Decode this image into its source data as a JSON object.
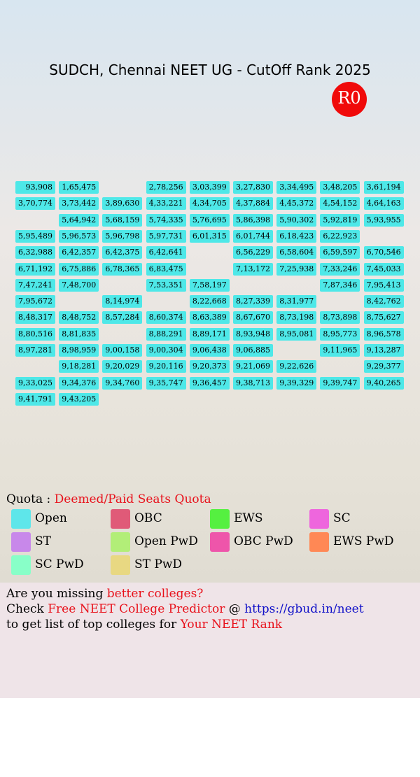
{
  "header": {
    "title": "SUDCH, Chennai NEET UG - CutOff Rank 2025",
    "round": "R0"
  },
  "grid": {
    "color": "#4ee8e8",
    "rows": [
      [
        "93,908",
        "1,65,475",
        null,
        "2,78,256",
        "3,03,399",
        "3,27,830",
        "3,34,495",
        "3,48,205",
        "3,61,194"
      ],
      [
        "3,70,774",
        "3,73,442",
        "3,89,630",
        "4,33,221",
        "4,34,705",
        "4,37,884",
        "4,45,372",
        "4,54,152",
        "4,64,163"
      ],
      [
        null,
        "5,64,942",
        "5,68,159",
        "5,74,335",
        "5,76,695",
        "5,86,398",
        "5,90,302",
        "5,92,819",
        "5,93,955"
      ],
      [
        "5,95,489",
        "5,96,573",
        "5,96,798",
        "5,97,731",
        "6,01,315",
        "6,01,744",
        "6,18,423",
        "6,22,923",
        null
      ],
      [
        "6,32,988",
        "6,42,357",
        "6,42,375",
        "6,42,641",
        null,
        "6,56,229",
        "6,58,604",
        "6,59,597",
        "6,70,546"
      ],
      [
        "6,71,192",
        "6,75,886",
        "6,78,365",
        "6,83,475",
        null,
        "7,13,172",
        "7,25,938",
        "7,33,246",
        "7,45,033"
      ],
      [
        "7,47,241",
        "7,48,700",
        null,
        "7,53,351",
        "7,58,197",
        null,
        null,
        "7,87,346",
        "7,95,413"
      ],
      [
        "7,95,672",
        null,
        "8,14,974",
        null,
        "8,22,668",
        "8,27,339",
        "8,31,977",
        null,
        "8,42,762"
      ],
      [
        "8,48,317",
        "8,48,752",
        "8,57,284",
        "8,60,374",
        "8,63,389",
        "8,67,670",
        "8,73,198",
        "8,73,898",
        "8,75,627"
      ],
      [
        "8,80,516",
        "8,81,835",
        null,
        "8,88,291",
        "8,89,171",
        "8,93,948",
        "8,95,081",
        "8,95,773",
        "8,96,578"
      ],
      [
        "8,97,281",
        "8,98,959",
        "9,00,158",
        "9,00,304",
        "9,06,438",
        "9,06,885",
        null,
        "9,11,965",
        "9,13,287"
      ],
      [
        null,
        "9,18,281",
        "9,20,029",
        "9,20,116",
        "9,20,373",
        "9,21,069",
        "9,22,626",
        null,
        "9,29,377"
      ],
      [
        "9,33,025",
        "9,34,376",
        "9,34,760",
        "9,35,747",
        "9,36,457",
        "9,38,713",
        "9,39,329",
        "9,39,747",
        "9,40,265"
      ],
      [
        "9,41,791",
        "9,43,205",
        null,
        null,
        null,
        null,
        null,
        null,
        null
      ]
    ]
  },
  "legend": {
    "label": "Quota : ",
    "quota": "Deemed/Paid Seats Quota",
    "items": [
      {
        "name": "Open",
        "color": "#5ee6ea"
      },
      {
        "name": "OBC",
        "color": "#e05a78"
      },
      {
        "name": "EWS",
        "color": "#55f040"
      },
      {
        "name": "SC",
        "color": "#ee66dd"
      },
      {
        "name": "ST",
        "color": "#c888ea"
      },
      {
        "name": "Open PwD",
        "color": "#b2ee78"
      },
      {
        "name": "OBC PwD",
        "color": "#ee55aa"
      },
      {
        "name": "EWS PwD",
        "color": "#ff8855"
      },
      {
        "name": "SC PwD",
        "color": "#88ffc8"
      },
      {
        "name": "ST PwD",
        "color": "#e8d882"
      }
    ]
  },
  "footer": {
    "line1": [
      "Are you missing ",
      "better colleges?"
    ],
    "line2": [
      "Check ",
      "Free NEET College Predictor",
      " @ ",
      "https://gbud.in/neet"
    ],
    "line3": [
      "to get list of top colleges for ",
      "Your NEET Rank"
    ]
  }
}
